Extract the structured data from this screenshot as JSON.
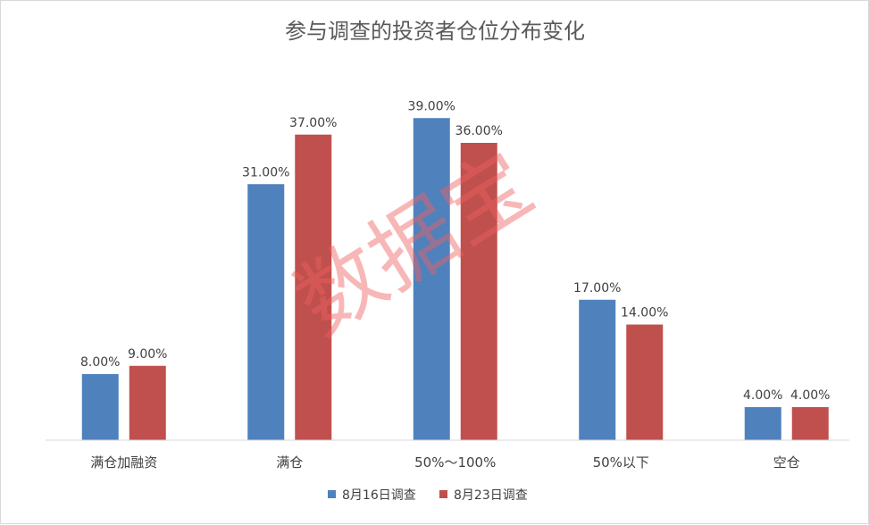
{
  "chart_data": {
    "type": "bar",
    "title": "参与调查的投资者仓位分布变化",
    "categories": [
      "满仓加融资",
      "满仓",
      "50%～100%",
      "50%以下",
      "空仓"
    ],
    "series": [
      {
        "name": "8月16日调查",
        "color": "#4f81bd",
        "values": [
          8.0,
          31.0,
          39.0,
          17.0,
          4.0
        ],
        "labels": [
          "8.00%",
          "31.00%",
          "39.00%",
          "17.00%",
          "4.00%"
        ]
      },
      {
        "name": "8月23日调查",
        "color": "#c0504d",
        "values": [
          9.0,
          37.0,
          36.0,
          14.0,
          4.0
        ],
        "labels": [
          "9.00%",
          "37.00%",
          "36.00%",
          "14.00%",
          "4.00%"
        ]
      }
    ],
    "ylim": [
      0,
      40
    ],
    "y_unit": "%",
    "grid": false,
    "legend_position": "bottom"
  },
  "watermark": {
    "text": "数据宝",
    "color": "#f06060"
  }
}
